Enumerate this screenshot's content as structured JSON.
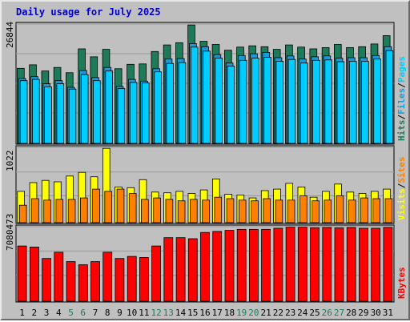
{
  "chart_data": {
    "type": "bar",
    "title": "Daily usage for July 2025",
    "categories": [
      "1",
      "2",
      "3",
      "4",
      "5",
      "6",
      "7",
      "8",
      "9",
      "10",
      "11",
      "12",
      "13",
      "14",
      "15",
      "16",
      "17",
      "18",
      "19",
      "20",
      "21",
      "22",
      "23",
      "24",
      "25",
      "26",
      "27",
      "28",
      "29",
      "30",
      "31"
    ],
    "weekend_days": [
      "5",
      "6",
      "12",
      "13",
      "19",
      "20",
      "26",
      "27"
    ],
    "panels": [
      {
        "name": "hits-files-pages",
        "max_label": "26844",
        "ylim": [
          0,
          26844
        ],
        "series": [
          {
            "name": "Hits",
            "color": "#1e7b59",
            "values": [
              17000,
              17800,
              16400,
              17200,
              16000,
              21400,
              19600,
              21300,
              16900,
              17900,
              18000,
              20800,
              22300,
              22800,
              26800,
              23100,
              22400,
              21100,
              21800,
              22100,
              21900,
              21300,
              22300,
              21800,
              21400,
              21700,
              22400,
              21700,
              21900,
              22500,
              24400
            ]
          },
          {
            "name": "Files",
            "color": "#1a9ad6",
            "values": [
              14700,
              15100,
              13500,
              14200,
              12700,
              16500,
              14900,
              17200,
              12900,
              14500,
              14100,
              16900,
              19100,
              19200,
              22600,
              21900,
              20100,
              18200,
              19900,
              20300,
              20600,
              19400,
              19800,
              19100,
              19600,
              19800,
              19300,
              19400,
              19400,
              19900,
              21900
            ]
          },
          {
            "name": "Pages",
            "color": "#00ccff",
            "values": [
              14200,
              14500,
              12800,
              13500,
              12300,
              15600,
              14200,
              16400,
              12400,
              13800,
              13700,
              16200,
              18100,
              18300,
              21800,
              20900,
              19300,
              17500,
              18800,
              19300,
              19500,
              18600,
              19000,
              18200,
              18800,
              18900,
              18500,
              18600,
              18600,
              19100,
              21000
            ]
          }
        ]
      },
      {
        "name": "visits-sites",
        "max_label": "1022",
        "ylim": [
          0,
          1022
        ],
        "series": [
          {
            "name": "Visits",
            "color": "#ffff00",
            "values": [
              430,
              550,
              580,
              560,
              640,
              690,
              630,
              1020,
              490,
              480,
              590,
              420,
              410,
              430,
              400,
              450,
              600,
              390,
              380,
              340,
              440,
              460,
              540,
              490,
              350,
              430,
              530,
              420,
              400,
              430,
              460
            ]
          },
          {
            "name": "Sites",
            "color": "#ff8000",
            "values": [
              240,
              330,
              310,
              320,
              320,
              340,
              460,
              430,
              460,
              400,
              320,
              340,
              320,
              300,
              320,
              310,
              350,
              330,
              310,
              300,
              330,
              310,
              310,
              370,
              300,
              310,
              370,
              310,
              340,
              330,
              330
            ]
          }
        ]
      },
      {
        "name": "kbytes",
        "max_label": "7080473",
        "ylim": [
          0,
          7080473
        ],
        "series": [
          {
            "name": "KBytes",
            "color": "#ff0000",
            "values": [
              5300000,
              5200000,
              4100000,
              4700000,
              3800000,
              3500000,
              3800000,
              4700000,
              4100000,
              4300000,
              4200000,
              5300000,
              6100000,
              6100000,
              6000000,
              6600000,
              6700000,
              6800000,
              6900000,
              6900000,
              6900000,
              7000000,
              7100000,
              7100000,
              7060000,
              7080000,
              7040000,
              7080000,
              7000000,
              7000000,
              7080000
            ]
          }
        ]
      }
    ],
    "right_legend": [
      {
        "panel": 0,
        "items": [
          {
            "text": "Hits",
            "color": "#1e7b59"
          },
          {
            "text": "/",
            "color": "#000000"
          },
          {
            "text": "Files",
            "color": "#1a9ad6"
          },
          {
            "text": "/",
            "color": "#000000"
          },
          {
            "text": "Pages",
            "color": "#00ccff"
          }
        ]
      },
      {
        "panel": 1,
        "items": [
          {
            "text": "Visits",
            "color": "#ffff00"
          },
          {
            "text": "/",
            "color": "#000000"
          },
          {
            "text": "Sites",
            "color": "#ff8000"
          }
        ]
      },
      {
        "panel": 2,
        "items": [
          {
            "text": "KBytes",
            "color": "#ff0000"
          }
        ]
      }
    ]
  }
}
